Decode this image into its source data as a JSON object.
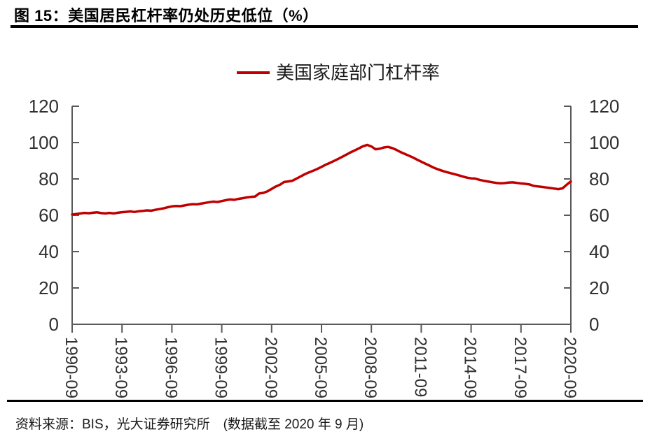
{
  "header": {
    "title": "图 15：美国居民杠杆率仍处历史低位（%）"
  },
  "footer": {
    "source": "资料来源：BIS，光大证券研究所　(数据截至 2020 年 9 月)"
  },
  "colors": {
    "line": "#C00000",
    "axis": "#595959",
    "label_text": "#303030",
    "rule": "#000000"
  },
  "chart_data": {
    "type": "line",
    "title": "美国家庭部门杠杆率",
    "x_start": "1990-09",
    "x_end": "2020-09",
    "frequency": "quarterly",
    "x_tick_labels": [
      "1990-09",
      "1993-09",
      "1996-09",
      "1999-09",
      "2002-09",
      "2005-09",
      "2008-09",
      "2011-09",
      "2014-09",
      "2017-09",
      "2020-09"
    ],
    "y_ticks": [
      0,
      20,
      40,
      60,
      80,
      100,
      120
    ],
    "ylim": [
      0,
      120
    ],
    "dual_axis": true,
    "grid": false,
    "legend_position": "top-center",
    "series": [
      {
        "name": "美国家庭部门杠杆率",
        "color": "#C00000",
        "values": [
          60.4,
          60.7,
          61.0,
          61.3,
          61.1,
          61.4,
          61.6,
          61.2,
          61.0,
          61.3,
          61.0,
          61.4,
          61.7,
          61.9,
          62.1,
          61.8,
          62.2,
          62.4,
          62.7,
          62.5,
          63.0,
          63.4,
          63.8,
          64.4,
          64.9,
          65.1,
          65.0,
          65.4,
          65.8,
          66.1,
          66.0,
          66.4,
          66.8,
          67.2,
          67.5,
          67.3,
          67.8,
          68.3,
          68.7,
          68.5,
          69.0,
          69.4,
          69.8,
          70.1,
          70.3,
          72.0,
          72.3,
          73.2,
          74.5,
          75.8,
          76.8,
          78.3,
          78.6,
          79.0,
          80.2,
          81.4,
          82.6,
          83.6,
          84.5,
          85.5,
          86.6,
          87.8,
          88.8,
          89.9,
          91.0,
          92.2,
          93.4,
          94.6,
          95.7,
          96.8,
          98.0,
          98.7,
          97.9,
          96.3,
          96.6,
          97.3,
          97.6,
          97.0,
          96.0,
          94.8,
          93.8,
          92.8,
          91.8,
          90.6,
          89.5,
          88.4,
          87.3,
          86.2,
          85.3,
          84.5,
          83.8,
          83.2,
          82.6,
          82.0,
          81.3,
          80.7,
          80.3,
          80.2,
          79.5,
          79.0,
          78.6,
          78.2,
          77.8,
          77.6,
          77.7,
          78.0,
          78.1,
          77.8,
          77.5,
          77.3,
          77.0,
          76.2,
          75.9,
          75.6,
          75.3,
          75.0,
          74.7,
          74.4,
          74.8,
          76.8,
          78.6
        ]
      }
    ]
  }
}
